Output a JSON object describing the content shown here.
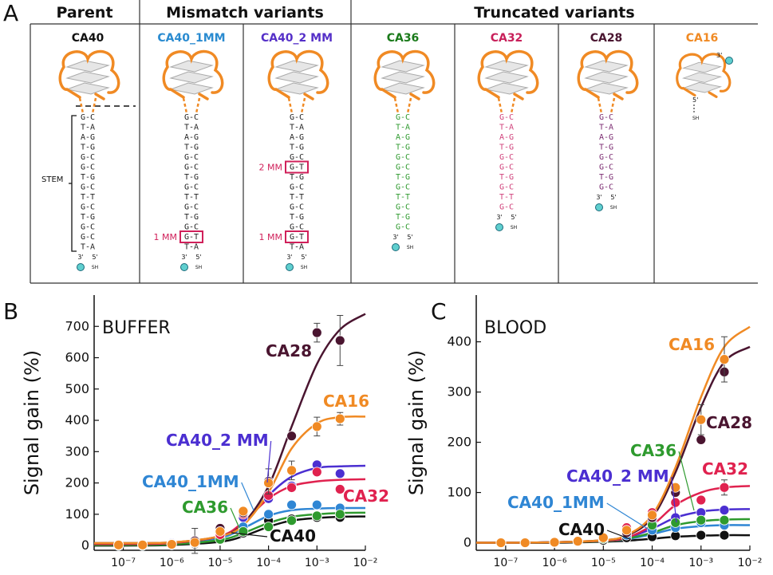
{
  "panel_a": {
    "label": "A",
    "headers": [
      "Parent",
      "Mismatch variants",
      "Truncated variants"
    ],
    "stem_label": "STEM",
    "ends": {
      "three": "3'",
      "five": "5'",
      "thiol": "SH"
    },
    "variants": [
      {
        "name": "CA40",
        "color": "#111111",
        "stem_color": "#222222",
        "pairs": [
          "G-C",
          "T-A",
          "A-G",
          "T-G",
          "G-C",
          "G-C",
          "T-G",
          "G-C",
          "T-T",
          "G-C",
          "T-G",
          "G-C",
          "G-C",
          "T-A"
        ],
        "mismatches": []
      },
      {
        "name": "CA40_1MM",
        "color": "#2a8bd0",
        "stem_color": "#222222",
        "pairs": [
          "G-C",
          "T-A",
          "A-G",
          "T-G",
          "G-C",
          "G-C",
          "T-G",
          "G-C",
          "T-T",
          "G-C",
          "T-G",
          "G-C",
          "G-T",
          "T-A"
        ],
        "mismatches": [
          {
            "pair": 12,
            "label": "1 MM"
          }
        ]
      },
      {
        "name": "CA40_2 MM",
        "color": "#5530c8",
        "stem_color": "#222222",
        "pairs": [
          "G-C",
          "T-A",
          "A-G",
          "T-G",
          "G-C",
          "G-T",
          "T-G",
          "G-C",
          "T-T",
          "G-C",
          "T-G",
          "G-C",
          "G-T",
          "T-A"
        ],
        "mismatches": [
          {
            "pair": 5,
            "label": "2 MM"
          },
          {
            "pair": 12,
            "label": "1 MM"
          }
        ]
      },
      {
        "name": "CA36",
        "color": "#1a7a1a",
        "stem_color": "#2e9a2e",
        "pairs": [
          "G-C",
          "T-A",
          "A-G",
          "T-G",
          "G-C",
          "G-C",
          "T-G",
          "G-C",
          "T-T",
          "G-C",
          "T-G",
          "G-C"
        ],
        "mismatches": []
      },
      {
        "name": "CA32",
        "color": "#c8205a",
        "stem_color": "#d0407a",
        "pairs": [
          "G-C",
          "T-A",
          "A-G",
          "T-G",
          "G-C",
          "G-C",
          "T-G",
          "G-C",
          "T-T",
          "G-C"
        ],
        "mismatches": []
      },
      {
        "name": "CA28",
        "color": "#4a1530",
        "stem_color": "#7a2a70",
        "pairs": [
          "G-C",
          "T-A",
          "A-G",
          "T-G",
          "G-C",
          "G-C",
          "T-G",
          "G-C"
        ],
        "mismatches": []
      },
      {
        "name": "CA16",
        "color": "#f08a24",
        "stem_color": "#222222",
        "pairs": [],
        "mismatches": []
      }
    ]
  },
  "chart_data": [
    {
      "type": "line",
      "panel": "B",
      "condition": "BUFFER",
      "y_label": "Signal gain (%)",
      "xscale": "log",
      "xlim": [
        2.5e-08,
        0.01
      ],
      "xticks": [
        {
          "value": 1e-07,
          "label": "10⁻⁷"
        },
        {
          "value": 1e-06,
          "label": "10⁻⁶"
        },
        {
          "value": 1e-05,
          "label": "10⁻⁵"
        },
        {
          "value": 0.0001,
          "label": "10⁻⁴"
        },
        {
          "value": 0.001,
          "label": "10⁻³"
        },
        {
          "value": 0.01,
          "label": "10⁻²"
        }
      ],
      "ylim": [
        -15,
        800
      ],
      "yticks": [
        0,
        100,
        200,
        300,
        400,
        500,
        600,
        700
      ],
      "x": [
        8e-08,
        2.5e-07,
        1e-06,
        3e-06,
        1e-05,
        3e-05,
        0.0001,
        0.0003,
        0.001,
        0.003
      ],
      "fit_x": [
        2.5e-08,
        1e-07,
        1e-06,
        1e-05,
        3e-05,
        0.0001,
        0.0003,
        0.001,
        0.003,
        0.01
      ],
      "series": [
        {
          "name": "CA40",
          "color": "#111111",
          "values": [
            0,
            0,
            2,
            5,
            20,
            40,
            80,
            85,
            90,
            90
          ],
          "fit": [
            0,
            0,
            2,
            12,
            30,
            60,
            80,
            88,
            92,
            93
          ]
        },
        {
          "name": "CA40_1MM",
          "color": "#2f86d4",
          "values": [
            2,
            2,
            5,
            10,
            30,
            60,
            100,
            130,
            130,
            120
          ],
          "fit": [
            3,
            3,
            6,
            25,
            55,
            95,
            113,
            118,
            120,
            120
          ]
        },
        {
          "name": "CA40_2 MM",
          "color": "#4b2fd1",
          "values": [
            3,
            3,
            8,
            15,
            40,
            90,
            150,
            190,
            258,
            230
          ],
          "fit": [
            5,
            5,
            8,
            30,
            70,
            160,
            220,
            248,
            253,
            255
          ]
        },
        {
          "name": "CA36",
          "color": "#2e9a2e",
          "values": [
            0,
            0,
            3,
            8,
            20,
            45,
            60,
            80,
            95,
            100
          ],
          "fit": [
            2,
            2,
            4,
            18,
            40,
            72,
            92,
            100,
            104,
            105
          ]
        },
        {
          "name": "CA32",
          "color": "#e0224f",
          "values": [
            3,
            3,
            6,
            10,
            35,
            100,
            160,
            185,
            235,
            180
          ],
          "fit": [
            5,
            5,
            8,
            30,
            75,
            150,
            190,
            205,
            210,
            212
          ]
        },
        {
          "name": "CA28",
          "color": "#4a1530",
          "values": [
            2,
            3,
            5,
            15,
            55,
            105,
            205,
            350,
            680,
            655
          ],
          "errors": [
            null,
            null,
            null,
            40,
            null,
            null,
            40,
            null,
            30,
            80
          ],
          "fit": [
            8,
            8,
            10,
            30,
            70,
            190,
            380,
            580,
            690,
            740
          ]
        },
        {
          "name": "CA16",
          "color": "#f08a24",
          "values": [
            2,
            2,
            4,
            10,
            45,
            110,
            200,
            240,
            380,
            405
          ],
          "errors": [
            null,
            null,
            null,
            null,
            null,
            null,
            null,
            30,
            30,
            20
          ],
          "fit": [
            8,
            8,
            10,
            30,
            65,
            170,
            310,
            390,
            410,
            412
          ]
        }
      ]
    },
    {
      "type": "line",
      "panel": "C",
      "condition": "BLOOD",
      "y_label": "Signal gain (%)",
      "xscale": "log",
      "xlim": [
        2.5e-08,
        0.01
      ],
      "xticks": [
        {
          "value": 1e-07,
          "label": "10⁻⁷"
        },
        {
          "value": 1e-06,
          "label": "10⁻⁶"
        },
        {
          "value": 1e-05,
          "label": "10⁻⁵"
        },
        {
          "value": 0.0001,
          "label": "10⁻⁴"
        },
        {
          "value": 0.001,
          "label": "10⁻³"
        },
        {
          "value": 0.01,
          "label": "10⁻²"
        }
      ],
      "ylim": [
        -15,
        493
      ],
      "yticks": [
        0,
        100,
        200,
        300,
        400
      ],
      "x": [
        8e-08,
        2.5e-07,
        1e-06,
        3e-06,
        1e-05,
        3e-05,
        0.0001,
        0.0003,
        0.001,
        0.003
      ],
      "fit_x": [
        2.5e-08,
        1e-07,
        1e-06,
        1e-05,
        3e-05,
        0.0001,
        0.0003,
        0.001,
        0.003,
        0.01
      ],
      "series": [
        {
          "name": "CA40",
          "color": "#111111",
          "values": [
            0,
            0,
            0,
            2,
            5,
            10,
            12,
            14,
            15,
            15
          ],
          "fit": [
            0,
            0,
            0,
            2,
            4,
            8,
            12,
            14,
            15,
            15
          ]
        },
        {
          "name": "CA40_1MM",
          "color": "#2f86d4",
          "values": [
            0,
            0,
            1,
            3,
            8,
            15,
            25,
            30,
            40,
            35
          ],
          "fit": [
            0,
            0,
            1,
            3,
            7,
            17,
            28,
            33,
            35,
            35
          ]
        },
        {
          "name": "CA40_2 MM",
          "color": "#4b2fd1",
          "values": [
            0,
            0,
            1,
            3,
            10,
            20,
            40,
            50,
            60,
            65
          ],
          "fit": [
            0,
            0,
            1,
            4,
            10,
            28,
            50,
            62,
            66,
            67
          ]
        },
        {
          "name": "CA36",
          "color": "#2e9a2e",
          "values": [
            0,
            0,
            1,
            3,
            8,
            25,
            35,
            40,
            45,
            45
          ],
          "fit": [
            0,
            0,
            1,
            3,
            8,
            20,
            35,
            43,
            46,
            47
          ]
        },
        {
          "name": "CA32",
          "color": "#e0224f",
          "values": [
            0,
            0,
            1,
            3,
            10,
            30,
            60,
            80,
            85,
            110
          ],
          "errors": [
            null,
            null,
            null,
            null,
            null,
            null,
            null,
            null,
            null,
            15
          ],
          "fit": [
            0,
            0,
            1,
            4,
            10,
            35,
            75,
            100,
            110,
            113
          ]
        },
        {
          "name": "CA28",
          "color": "#4a1530",
          "values": [
            0,
            0,
            1,
            3,
            10,
            20,
            50,
            100,
            205,
            340
          ],
          "errors": [
            null,
            null,
            null,
            null,
            null,
            null,
            null,
            null,
            null,
            20
          ],
          "fit": [
            0,
            0,
            1,
            5,
            14,
            50,
            140,
            270,
            360,
            390
          ]
        },
        {
          "name": "CA16",
          "color": "#f08a24",
          "values": [
            0,
            0,
            1,
            3,
            10,
            25,
            55,
            110,
            245,
            365
          ],
          "errors": [
            null,
            null,
            null,
            null,
            null,
            null,
            null,
            null,
            30,
            45
          ],
          "fit": [
            0,
            0,
            1,
            5,
            15,
            55,
            150,
            290,
            390,
            430
          ]
        }
      ]
    }
  ]
}
